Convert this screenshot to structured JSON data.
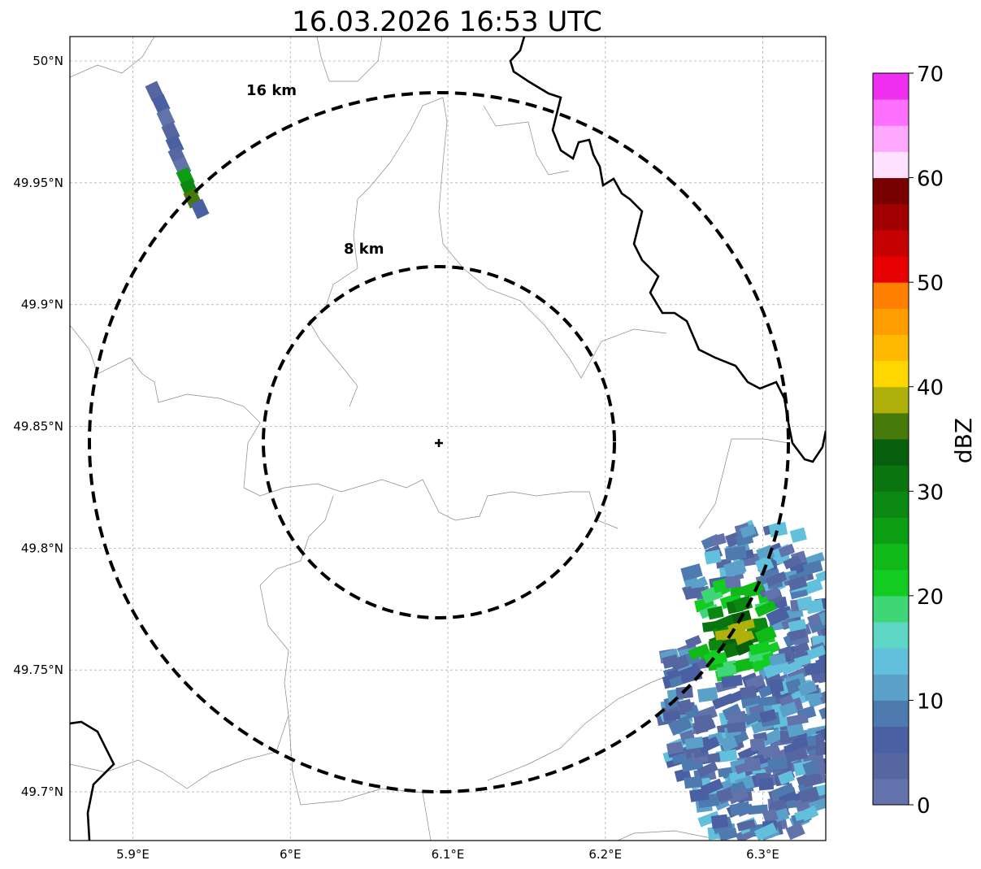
{
  "map": {
    "title": "16.03.2026 16:53 UTC",
    "extent": {
      "lon_min": 5.86,
      "lon_max": 6.34,
      "lat_min": 49.68,
      "lat_max": 50.01
    },
    "radar_site": {
      "lon": 6.095,
      "lat": 49.843
    },
    "lon_ticks": [
      {
        "value": 5.9,
        "label": "5.9°E"
      },
      {
        "value": 6.0,
        "label": "6°E"
      },
      {
        "value": 6.1,
        "label": "6.1°E"
      },
      {
        "value": 6.2,
        "label": "6.2°E"
      },
      {
        "value": 6.3,
        "label": "6.3°E"
      }
    ],
    "lat_ticks": [
      {
        "value": 50.0,
        "label": "50°N"
      },
      {
        "value": 49.95,
        "label": "49.95°N"
      },
      {
        "value": 49.9,
        "label": "49.9°N"
      },
      {
        "value": 49.85,
        "label": "49.85°N"
      },
      {
        "value": 49.8,
        "label": "49.8°N"
      },
      {
        "value": 49.75,
        "label": "49.75°N"
      },
      {
        "value": 49.7,
        "label": "49.7°N"
      }
    ],
    "range_rings": [
      {
        "radius_km": 8,
        "label": "8 km"
      },
      {
        "radius_km": 16,
        "label": "16 km"
      }
    ]
  },
  "colorbar": {
    "label": "dBZ",
    "min": 0,
    "max": 70,
    "step": 2.5,
    "tick_labels": [
      "0",
      "10",
      "20",
      "30",
      "40",
      "50",
      "60",
      "70"
    ],
    "colors": [
      "#6272aa",
      "#5566a0",
      "#4a60a2",
      "#4f7ab0",
      "#5aa0c8",
      "#62c0dc",
      "#5ed6c6",
      "#3ed676",
      "#12cc22",
      "#10b818",
      "#0c9e12",
      "#0a8812",
      "#0a740e",
      "#075e0c",
      "#467a0a",
      "#b0b00a",
      "#ffd700",
      "#ffb900",
      "#ff9c00",
      "#ff7f00",
      "#e60000",
      "#c40000",
      "#a00000",
      "#780000",
      "#ffe0ff",
      "#ffa8ff",
      "#ff70ff",
      "#f030f0"
    ]
  }
}
